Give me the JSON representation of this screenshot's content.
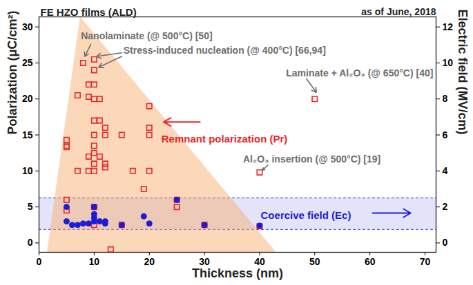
{
  "chart_data": {
    "type": "scatter",
    "title": "FE HZO films (ALD)",
    "subtitle": "as of June, 2018",
    "x_label": "Thickness (nm)",
    "y_label": "Polarization (μC/cm²)",
    "y2_label": "Electric field (MV/cm)",
    "xlim": [
      0,
      72
    ],
    "xticks": [
      0,
      10,
      20,
      30,
      40,
      50,
      60,
      70
    ],
    "ylim": [
      -1.3,
      31.4
    ],
    "yticks": [
      0,
      5,
      10,
      15,
      20,
      25,
      30
    ],
    "y2lim": [
      -0.52,
      12.56
    ],
    "y2ticks": [
      0,
      2,
      4,
      6,
      8,
      10,
      12
    ],
    "series": [
      {
        "name": "Remnant polarization (Pr)",
        "color": "#e8262a",
        "marker": "open_square",
        "x": [
          5,
          5,
          5,
          5,
          5,
          7,
          7,
          8,
          9,
          9,
          9,
          9,
          10,
          10,
          10,
          10,
          10,
          10,
          10,
          10,
          10,
          10,
          10,
          10,
          11,
          11,
          11,
          12,
          12,
          12,
          12,
          13,
          15,
          15,
          17,
          19,
          20,
          20,
          20,
          20,
          25,
          25,
          30,
          40,
          40,
          50
        ],
        "values": [
          6,
          14.3,
          13.3,
          13.5,
          4.5,
          10,
          20.5,
          25,
          20.3,
          22,
          12,
          10,
          25.5,
          24,
          22,
          20,
          17,
          15,
          13.5,
          12.5,
          11,
          10,
          5,
          2.5,
          12,
          20,
          17,
          16,
          15,
          11,
          10.5,
          -0.9,
          15,
          2.5,
          10,
          7.5,
          19,
          16,
          15,
          10,
          6,
          5,
          2.5,
          9.8,
          2.3,
          20
        ],
        "label_at": [
          22.2,
          14.4
        ],
        "arrow": [
          29.2,
          16.8,
          22.6,
          16.8
        ]
      },
      {
        "name": "Coercive field (Ec)",
        "color": "#1c1cd6",
        "marker": "circle",
        "axis": "y2",
        "x": [
          5,
          5,
          6,
          7,
          8,
          9,
          10,
          10,
          10,
          10,
          11,
          12,
          12,
          15,
          19,
          20,
          25,
          30,
          40
        ],
        "values": [
          2.0,
          1.2,
          1.0,
          1.0,
          1.08,
          1.08,
          2.0,
          1.6,
          1.4,
          1.2,
          1.2,
          1.08,
          1.2,
          1.0,
          1.48,
          1.08,
          2.4,
          1.0,
          0.96
        ],
        "label_at": [
          40.2,
          1.5
        ],
        "arrow": [
          60.5,
          1.66,
          67.4,
          1.66
        ]
      }
    ],
    "band": {
      "axis": "y2",
      "range": [
        0.75,
        2.5
      ],
      "color": "#2a2ad0"
    },
    "region": {
      "x": [
        1.5,
        7.5,
        43
      ],
      "y": [
        -1.3,
        31.4,
        -1.3
      ],
      "color": "#f8a865"
    },
    "annotations": [
      {
        "text": "Nanolaminate (@ 500°C) [50]",
        "x": 7.6,
        "y": 28.7,
        "arrows": [
          [
            9.4,
            27.6,
            8.3,
            25.9
          ]
        ]
      },
      {
        "text": "Stress-induced nucleation (@ 400°C) [66,94]",
        "x": 15.3,
        "y": 26.7,
        "arrows": [
          [
            15.0,
            26.4,
            10.4,
            25.9
          ],
          [
            15.0,
            25.9,
            10.8,
            24.4
          ]
        ]
      },
      {
        "text": "Laminate + Al₂O₃ (@ 650°C) [40]",
        "x": 44.8,
        "y": 23.6,
        "arrows": [
          [
            48.5,
            22.8,
            50.3,
            20.9
          ]
        ]
      },
      {
        "text": "Al₂O₃ insertion (@ 500°C) [19]",
        "x": 37,
        "y": 11.6,
        "arrows": [
          [
            41.5,
            10.8,
            40.5,
            10.1
          ]
        ]
      }
    ]
  }
}
